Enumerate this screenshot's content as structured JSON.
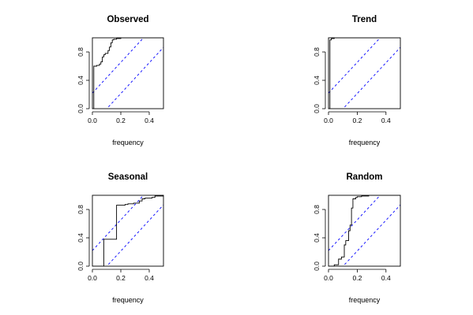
{
  "chart_data": [
    {
      "type": "line",
      "title": "Observed",
      "xlabel": "frequency",
      "ylabel": "",
      "xlim": [
        0,
        0.5
      ],
      "ylim": [
        0,
        1
      ],
      "xticks": [
        "0.0",
        "0.2",
        "0.4"
      ],
      "yticks": [
        "0.0",
        "0.4",
        "0.8"
      ],
      "grid": false,
      "legend": "none",
      "step_series": {
        "x": [
          0,
          0.01,
          0.01,
          0.03,
          0.05,
          0.06,
          0.07,
          0.08,
          0.09,
          0.11,
          0.12,
          0.13,
          0.14,
          0.15,
          0.17,
          0.2,
          0.5
        ],
        "y": [
          0,
          0,
          0.6,
          0.61,
          0.63,
          0.66,
          0.73,
          0.76,
          0.78,
          0.82,
          0.87,
          0.93,
          0.97,
          0.98,
          0.99,
          1.0,
          1.0
        ]
      },
      "band_lines": {
        "lower_intercept": -0.22,
        "upper_intercept": 0.22,
        "slope": 2.17
      },
      "colors": {
        "step": "#000000",
        "band": "#0000ff"
      }
    },
    {
      "type": "line",
      "title": "Trend",
      "xlabel": "frequency",
      "ylabel": "",
      "xlim": [
        0,
        0.5
      ],
      "ylim": [
        0,
        1
      ],
      "xticks": [
        "0.0",
        "0.2",
        "0.4"
      ],
      "yticks": [
        "0.0",
        "0.4",
        "0.8"
      ],
      "grid": false,
      "legend": "none",
      "step_series": {
        "x": [
          0,
          0.01,
          0.01,
          0.02,
          0.04,
          0.5
        ],
        "y": [
          0,
          0,
          0.97,
          0.99,
          1.0,
          1.0
        ]
      },
      "band_lines": {
        "lower_intercept": -0.22,
        "upper_intercept": 0.22,
        "slope": 2.17
      },
      "colors": {
        "step": "#000000",
        "band": "#0000ff"
      }
    },
    {
      "type": "line",
      "title": "Seasonal",
      "xlabel": "frequency",
      "ylabel": "",
      "xlim": [
        0,
        0.5
      ],
      "ylim": [
        0,
        1
      ],
      "xticks": [
        "0.0",
        "0.2",
        "0.4"
      ],
      "yticks": [
        "0.0",
        "0.4",
        "0.8"
      ],
      "grid": false,
      "legend": "none",
      "step_series": {
        "x": [
          0,
          0.08,
          0.08,
          0.17,
          0.17,
          0.23,
          0.25,
          0.29,
          0.33,
          0.35,
          0.37,
          0.42,
          0.44,
          0.5
        ],
        "y": [
          0,
          0,
          0.38,
          0.38,
          0.86,
          0.87,
          0.88,
          0.89,
          0.92,
          0.95,
          0.96,
          0.97,
          0.99,
          1.0
        ]
      },
      "band_lines": {
        "lower_intercept": -0.22,
        "upper_intercept": 0.22,
        "slope": 2.17
      },
      "colors": {
        "step": "#000000",
        "band": "#0000ff"
      }
    },
    {
      "type": "line",
      "title": "Random",
      "xlabel": "frequency",
      "ylabel": "",
      "xlim": [
        0,
        0.5
      ],
      "ylim": [
        0,
        1
      ],
      "xticks": [
        "0.0",
        "0.2",
        "0.4"
      ],
      "yticks": [
        "0.0",
        "0.4",
        "0.8"
      ],
      "grid": false,
      "legend": "none",
      "step_series": {
        "x": [
          0,
          0.04,
          0.07,
          0.09,
          0.11,
          0.12,
          0.14,
          0.15,
          0.16,
          0.17,
          0.19,
          0.2,
          0.23,
          0.28,
          0.38,
          0.5
        ],
        "y": [
          0,
          0.02,
          0.1,
          0.13,
          0.3,
          0.36,
          0.5,
          0.58,
          0.82,
          0.95,
          0.97,
          0.98,
          0.99,
          1.0,
          1.0,
          1.0
        ]
      },
      "band_lines": {
        "lower_intercept": -0.22,
        "upper_intercept": 0.22,
        "slope": 2.17
      },
      "colors": {
        "step": "#000000",
        "band": "#0000ff"
      }
    }
  ]
}
